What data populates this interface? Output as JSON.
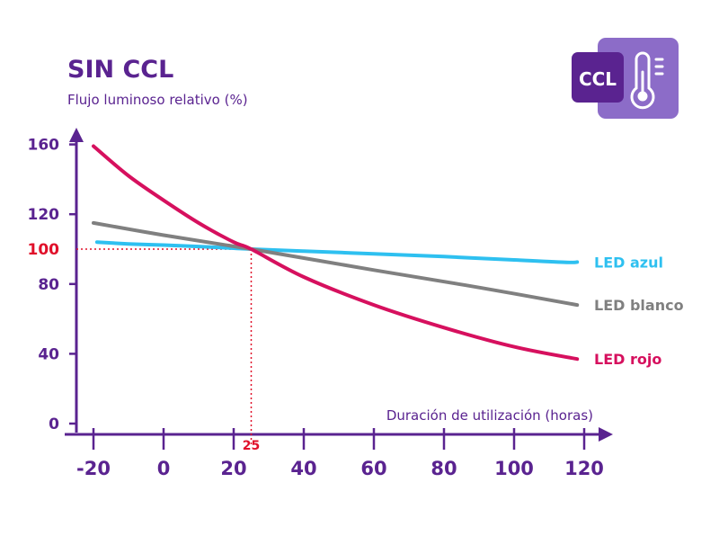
{
  "badge": {
    "text": "CCL",
    "icon": "thermometer-icon",
    "dark_color": "#5a2390",
    "light_color": "#8c6cc8"
  },
  "chart_data": {
    "type": "line",
    "title": "SIN CCL",
    "ylabel": "Flujo luminoso relativo (%)",
    "xlabel": "Duración de utilización (horas)",
    "xlim": [
      -20,
      120
    ],
    "ylim": [
      0,
      160
    ],
    "x_ticks": [
      "-20",
      "0",
      "20",
      "40",
      "60",
      "80",
      "100",
      "120"
    ],
    "y_ticks": [
      "0",
      "40",
      "80",
      "120",
      "160"
    ],
    "reference": {
      "x": 25,
      "y": 100,
      "x_label": "25",
      "y_label": "100",
      "color": "#e0102a"
    },
    "series": [
      {
        "name": "LED azul",
        "color": "#2ec0f0",
        "x": [
          -19,
          -10,
          0,
          10,
          20,
          25,
          40,
          60,
          80,
          100,
          115,
          118
        ],
        "y": [
          104,
          103,
          102.3,
          101.5,
          100.5,
          100,
          98.8,
          97.3,
          95.7,
          93.8,
          92.4,
          92.6
        ]
      },
      {
        "name": "LED blanco",
        "color": "#808080",
        "x": [
          -20,
          0,
          25,
          60,
          90,
          118
        ],
        "y": [
          115,
          108,
          100,
          88,
          78,
          68
        ]
      },
      {
        "name": "LED rojo",
        "color": "#d6105e",
        "x": [
          -20,
          -10,
          0,
          10,
          20,
          25,
          40,
          60,
          80,
          100,
          118
        ],
        "y": [
          159,
          142,
          128,
          115,
          104,
          100,
          84,
          68,
          55,
          44,
          37
        ]
      }
    ]
  }
}
